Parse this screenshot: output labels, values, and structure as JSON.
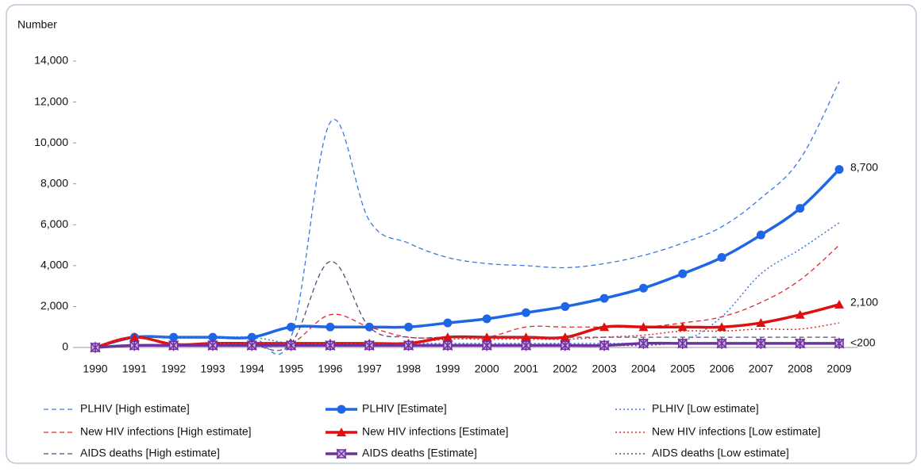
{
  "chart_data": {
    "type": "line",
    "y_axis_label": "Number",
    "categories": [
      "1990",
      "1991",
      "1992",
      "1993",
      "1994",
      "1995",
      "1996",
      "1997",
      "1998",
      "1999",
      "2000",
      "2001",
      "2002",
      "2003",
      "2004",
      "2005",
      "2006",
      "2007",
      "2008",
      "2009"
    ],
    "ylim": [
      0,
      14000
    ],
    "yticks": [
      0,
      {
        "value": 2000,
        "label": "2,000"
      },
      {
        "value": 4000,
        "label": "4,000"
      },
      {
        "value": 6000,
        "label": "6,000"
      },
      {
        "value": 8000,
        "label": "8,000"
      },
      {
        "value": 10000,
        "label": "10,000"
      },
      {
        "value": 12000,
        "label": "12,000"
      },
      {
        "value": 14000,
        "label": "14,000"
      }
    ],
    "grid": false,
    "series": [
      {
        "name": "PLHIV [High estimate]",
        "color": "#3a78e0",
        "dash": "dashed",
        "marker": "none",
        "width": 1.3,
        "values": [
          0,
          500,
          500,
          500,
          500,
          500,
          11000,
          6200,
          5100,
          4400,
          4100,
          4000,
          3900,
          4100,
          4500,
          5100,
          5900,
          7300,
          9200,
          13000
        ]
      },
      {
        "name": "PLHIV [Estimate]",
        "color": "#1f66e5",
        "dash": "solid",
        "marker": "circle",
        "width": 3.5,
        "values": [
          0,
          500,
          500,
          500,
          500,
          1000,
          1000,
          1000,
          1000,
          1200,
          1400,
          1700,
          2000,
          2400,
          2900,
          3600,
          4400,
          5500,
          6800,
          8700
        ]
      },
      {
        "name": "PLHIV [Low estimate]",
        "color": "#3a78e0",
        "dash": "dotted",
        "marker": "none",
        "width": 1.5,
        "values": [
          0,
          500,
          500,
          500,
          500,
          200,
          200,
          200,
          200,
          200,
          200,
          200,
          200,
          200,
          200,
          300,
          1500,
          3600,
          4800,
          6100
        ]
      },
      {
        "name": "New HIV infections [High estimate]",
        "color": "#e02a2a",
        "dash": "dashed",
        "marker": "none",
        "width": 1.3,
        "values": [
          0,
          500,
          100,
          100,
          100,
          200,
          1600,
          1000,
          500,
          500,
          500,
          1000,
          1000,
          1000,
          1000,
          1200,
          1500,
          2200,
          3300,
          5000
        ]
      },
      {
        "name": "New HIV infections [Estimate]",
        "color": "#e00f0f",
        "dash": "solid",
        "marker": "triangle",
        "width": 3.5,
        "values": [
          0,
          500,
          150,
          200,
          200,
          200,
          200,
          200,
          200,
          500,
          500,
          500,
          500,
          1000,
          1000,
          1000,
          1000,
          1200,
          1600,
          2100
        ]
      },
      {
        "name": "New HIV infections [Low estimate]",
        "color": "#e02a2a",
        "dash": "dotted",
        "marker": "none",
        "width": 1.5,
        "values": [
          0,
          500,
          100,
          200,
          200,
          200,
          200,
          200,
          200,
          400,
          400,
          400,
          400,
          500,
          600,
          800,
          800,
          900,
          900,
          1200
        ]
      },
      {
        "name": "AIDS deaths [High estimate]",
        "color": "#5a4a7a",
        "dash": "dashed",
        "marker": "none",
        "width": 1.3,
        "values": [
          0,
          100,
          100,
          100,
          100,
          200,
          4200,
          1000,
          500,
          500,
          500,
          500,
          500,
          500,
          500,
          500,
          500,
          500,
          500,
          500
        ]
      },
      {
        "name": "AIDS deaths [Estimate]",
        "color": "#7030a0",
        "dash": "solid",
        "marker": "star-square",
        "width": 3.5,
        "values": [
          0,
          100,
          100,
          100,
          100,
          100,
          100,
          100,
          100,
          100,
          100,
          100,
          100,
          100,
          200,
          200,
          200,
          200,
          200,
          200
        ]
      },
      {
        "name": "AIDS deaths [Low estimate]",
        "color": "#5a4a7a",
        "dash": "dotted",
        "marker": "none",
        "width": 1.5,
        "values": [
          0,
          100,
          100,
          100,
          100,
          100,
          100,
          100,
          100,
          100,
          100,
          100,
          100,
          100,
          100,
          200,
          200,
          200,
          200,
          200
        ]
      }
    ],
    "annotations": [
      {
        "label": "8,700",
        "value": 8700,
        "series": 1
      },
      {
        "label": "2,100",
        "value": 2100,
        "series": 4
      },
      {
        "label": "<200",
        "value": 200,
        "series": 7
      }
    ],
    "legend": "bottom"
  }
}
